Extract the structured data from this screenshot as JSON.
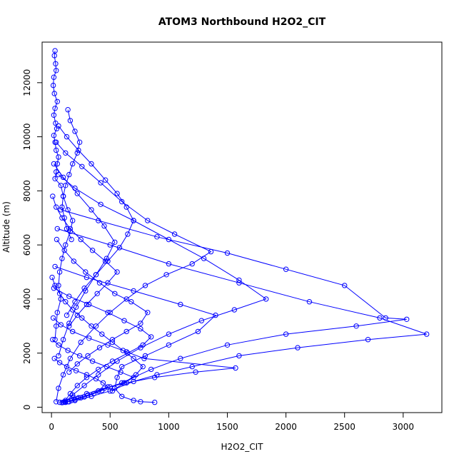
{
  "chart_data": {
    "type": "line",
    "title": "ATOM3 Northbound H2O2_CIT",
    "xlabel": "H2O2_CIT",
    "ylabel": "Altitude (m)",
    "xlim": [
      -80,
      3330
    ],
    "ylim": [
      -200,
      13500
    ],
    "x_ticks": [
      0,
      500,
      1000,
      1500,
      2000,
      2500,
      3000
    ],
    "y_ticks": [
      0,
      2000,
      4000,
      6000,
      8000,
      10000,
      12000
    ],
    "grid": false,
    "legend": "none",
    "marker": "open-circle",
    "color": "#0000ff",
    "series": [
      {
        "x": [
          30,
          25,
          35,
          40,
          20,
          15,
          25,
          50,
          30,
          20,
          35,
          45,
          20,
          30,
          40,
          60,
          50,
          40,
          30,
          80,
          100,
          140,
          180,
          160,
          120,
          90,
          70,
          60,
          80,
          50,
          40,
          30
        ],
        "y": [
          13180,
          13000,
          12700,
          12450,
          12200,
          11900,
          11600,
          11300,
          11050,
          10800,
          10500,
          10300,
          10050,
          9800,
          9500,
          9250,
          9000,
          8700,
          8450,
          8200,
          7800,
          7300,
          6900,
          6500,
          6000,
          5500,
          5000,
          4500,
          4000,
          3500,
          3000,
          2500
        ]
      },
      {
        "x": [
          40,
          120,
          260,
          420,
          600,
          820,
          1050,
          1360,
          1200,
          980,
          800,
          640,
          500,
          380,
          250,
          160,
          100,
          60,
          40
        ],
        "y": [
          9800,
          9400,
          8900,
          8300,
          7600,
          6900,
          6400,
          5750,
          5300,
          4900,
          4500,
          4000,
          3500,
          3000,
          2400,
          1800,
          1200,
          700,
          200
        ]
      },
      {
        "x": [
          60,
          200,
          420,
          700,
          1000,
          1300,
          1600,
          1830,
          1560,
          1280,
          1000,
          760,
          560,
          400,
          280,
          180,
          120
        ],
        "y": [
          8600,
          8100,
          7500,
          6900,
          6200,
          5500,
          4700,
          4000,
          3600,
          3200,
          2700,
          2200,
          1700,
          1200,
          800,
          450,
          200
        ]
      },
      {
        "x": [
          80,
          400,
          900,
          1500,
          2000,
          2500,
          2850,
          3030,
          2600,
          2000,
          1500,
          1100,
          850,
          600,
          400,
          250,
          150
        ],
        "y": [
          7300,
          6900,
          6300,
          5700,
          5100,
          4500,
          3300,
          3250,
          3000,
          2700,
          2300,
          1800,
          1400,
          900,
          600,
          350,
          200
        ]
      },
      {
        "x": [
          50,
          500,
          1000,
          1600,
          2200,
          2800,
          3200,
          2700,
          2100,
          1600,
          1200,
          900,
          700,
          500,
          340,
          200,
          100
        ],
        "y": [
          6600,
          6000,
          5300,
          4600,
          3900,
          3300,
          2700,
          2500,
          2200,
          1900,
          1500,
          1200,
          950,
          600,
          400,
          250,
          180
        ]
      },
      {
        "x": [
          30,
          300,
          700,
          1100,
          1400,
          1250,
          1000,
          800,
          600,
          560,
          540,
          600,
          700,
          760,
          880
        ],
        "y": [
          5200,
          4800,
          4300,
          3800,
          3400,
          2800,
          2300,
          1900,
          1500,
          1100,
          700,
          400,
          250,
          200,
          180
        ]
      },
      {
        "x": [
          20,
          150,
          320,
          480,
          620,
          760,
          850,
          780,
          650,
          520,
          400,
          300,
          220,
          160,
          110
        ],
        "y": [
          4400,
          4100,
          3800,
          3500,
          3200,
          2900,
          2600,
          2300,
          2000,
          1700,
          1400,
          1100,
          800,
          500,
          200
        ]
      },
      {
        "x": [
          15,
          80,
          180,
          320,
          480,
          640,
          790,
          1570,
          1230,
          880,
          640,
          450,
          300,
          190,
          120,
          70
        ],
        "y": [
          3300,
          3050,
          2800,
          2550,
          2300,
          2050,
          1800,
          1450,
          1300,
          1100,
          900,
          700,
          500,
          350,
          250,
          180
        ]
      },
      {
        "x": [
          10,
          60,
          140,
          240,
          350,
          470,
          590,
          700,
          620,
          500,
          400,
          310,
          230,
          170,
          120
        ],
        "y": [
          2500,
          2300,
          2100,
          1900,
          1700,
          1500,
          1300,
          1100,
          900,
          750,
          600,
          450,
          350,
          250,
          180
        ]
      },
      {
        "x": [
          25,
          70,
          130,
          210,
          300,
          380,
          440,
          480,
          430,
          360,
          280,
          200,
          140,
          90
        ],
        "y": [
          1800,
          1650,
          1500,
          1350,
          1200,
          1050,
          900,
          750,
          620,
          500,
          380,
          280,
          200,
          170
        ]
      },
      {
        "x": [
          140,
          160,
          200,
          240,
          220,
          180,
          150,
          120,
          100,
          90,
          110,
          130,
          170
        ],
        "y": [
          11000,
          10600,
          10200,
          9800,
          9400,
          9000,
          8600,
          8200,
          7800,
          7400,
          7000,
          6600,
          6200
        ]
      },
      {
        "x": [
          60,
          130,
          230,
          340,
          460,
          560,
          640,
          700,
          650,
          580,
          480,
          380,
          280,
          200,
          130
        ],
        "y": [
          10400,
          10000,
          9500,
          9000,
          8400,
          7900,
          7400,
          6900,
          6400,
          5900,
          5400,
          4900,
          4400,
          3900,
          3400
        ]
      },
      {
        "x": [
          20,
          100,
          220,
          340,
          450,
          540,
          470,
          380,
          290,
          210,
          150,
          100,
          60
        ],
        "y": [
          9000,
          8500,
          7900,
          7300,
          6700,
          6100,
          5500,
          4900,
          4300,
          3700,
          3100,
          2500,
          1900
        ]
      },
      {
        "x": [
          10,
          40,
          90,
          160,
          250,
          350,
          460,
          560,
          480,
          390,
          300,
          220,
          150
        ],
        "y": [
          7800,
          7400,
          7000,
          6600,
          6200,
          5800,
          5400,
          5000,
          4600,
          4200,
          3800,
          3400,
          3000
        ]
      },
      {
        "x": [
          45,
          110,
          190,
          290,
          410,
          540,
          680,
          820,
          760,
          640,
          520,
          410,
          310,
          220,
          150
        ],
        "y": [
          6200,
          5800,
          5400,
          5000,
          4600,
          4200,
          3900,
          3500,
          3100,
          2800,
          2500,
          2200,
          1900,
          1600,
          1300
        ]
      },
      {
        "x": [
          5,
          30,
          70,
          120,
          180,
          260,
          340,
          430,
          520,
          610,
          700,
          780,
          720,
          620,
          520
        ],
        "y": [
          4800,
          4500,
          4200,
          3900,
          3600,
          3300,
          3000,
          2700,
          2400,
          2100,
          1800,
          1500,
          1200,
          900,
          600
        ]
      }
    ]
  }
}
